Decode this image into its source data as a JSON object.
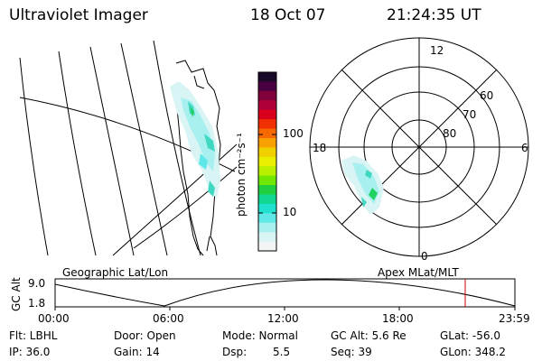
{
  "header": {
    "instrument": "Ultraviolet Imager",
    "date": "18 Oct 07",
    "time": "21:24:35 UT"
  },
  "colorbar": {
    "unit_label": "photon cm⁻²s⁻¹",
    "ticks": [
      "100",
      "10"
    ],
    "colors_top_to_bottom": [
      "#1a0a2a",
      "#4a0040",
      "#80003a",
      "#b0003a",
      "#d8001c",
      "#f03000",
      "#f86800",
      "#f8a000",
      "#f0d000",
      "#e8f000",
      "#b8f000",
      "#70e800",
      "#20d040",
      "#10d890",
      "#20e0d0",
      "#60e8e8",
      "#a8f0f0",
      "#d8f4f4",
      "#f0f4f4"
    ]
  },
  "polar": {
    "mlt_labels": [
      "12",
      "6",
      "0",
      "18"
    ],
    "lat_labels": [
      "60",
      "70",
      "80"
    ]
  },
  "geographic": {
    "label": "Geographic Lat/Lon"
  },
  "timeline": {
    "label_left": "Geographic Lat/Lon",
    "label_right": "Apex MLat/MLT",
    "y_axis_title": "GC Alt",
    "y_ticks": [
      "9.0",
      "1.8"
    ],
    "x_ticks": [
      "00:00",
      "06:00",
      "12:00",
      "18:00",
      "23:59"
    ],
    "marker_color": "#cc0000"
  },
  "info": {
    "flt": "Flt: LBHL",
    "ip": "IP: 36.0",
    "door": "Door: Open",
    "gain": "Gain: 14",
    "mode": "Mode: Normal",
    "dsp_label": "Dsp:",
    "dsp_value": "5.5",
    "gc_alt": "GC Alt: 5.6 Re",
    "seq": "Seq: 39",
    "glat": "GLat: -56.0",
    "glon": "GLon: 348.2"
  }
}
